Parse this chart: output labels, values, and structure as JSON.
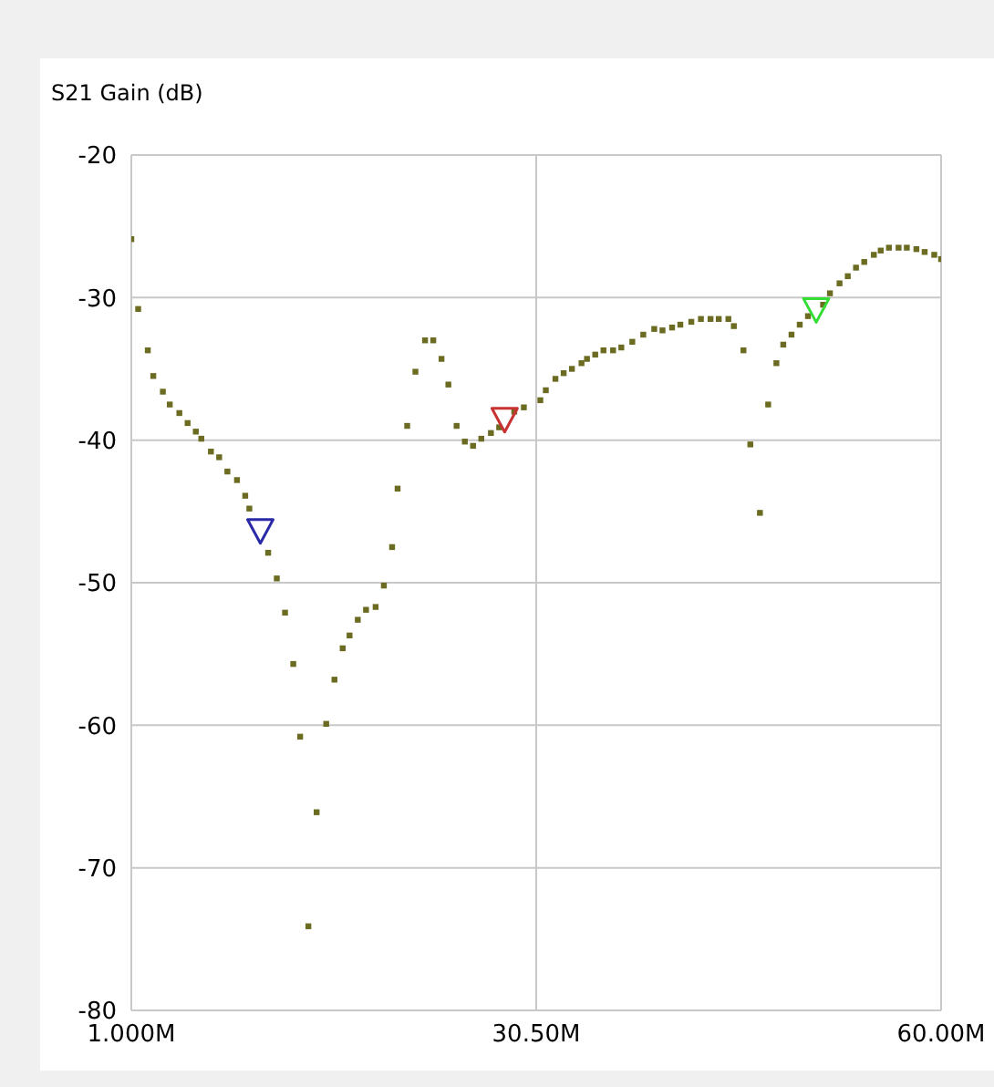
{
  "chart_data": {
    "type": "scatter",
    "ylabel": "S21 Gain (dB)",
    "xlim": [
      1,
      60
    ],
    "xticks": [
      {
        "value": 1,
        "label": "1.000M"
      },
      {
        "value": 30.5,
        "label": "30.50M"
      },
      {
        "value": 60,
        "label": "60.00M"
      }
    ],
    "ylim": [
      -80,
      -20
    ],
    "yticks": [
      -20,
      -30,
      -40,
      -50,
      -60,
      -70,
      -80
    ],
    "grid": true,
    "legend": false,
    "series": [
      {
        "color": "#6b6b22",
        "marker": "square",
        "x": [
          1.0,
          1.5,
          2.2,
          2.6,
          3.3,
          3.8,
          4.5,
          5.1,
          5.7,
          6.1,
          6.8,
          7.4,
          8.0,
          8.7,
          9.3,
          9.6,
          10.97,
          11.6,
          12.2,
          12.8,
          13.3,
          13.9,
          14.5,
          15.2,
          15.8,
          16.4,
          16.9,
          17.5,
          18.1,
          18.8,
          19.4,
          20.0,
          20.4,
          21.1,
          21.7,
          22.4,
          23.0,
          23.6,
          24.1,
          24.7,
          25.3,
          25.9,
          26.5,
          27.2,
          27.8,
          28.9,
          29.6,
          30.8,
          31.2,
          31.9,
          32.5,
          33.1,
          33.8,
          34.2,
          34.8,
          35.4,
          36.1,
          36.7,
          37.5,
          38.3,
          39.1,
          39.7,
          40.4,
          41.0,
          41.8,
          42.5,
          43.2,
          43.8,
          44.5,
          44.9,
          45.6,
          46.1,
          46.8,
          47.4,
          48.0,
          48.5,
          49.1,
          49.7,
          50.3,
          51.4,
          51.9,
          52.6,
          53.2,
          53.8,
          54.4,
          55.1,
          55.6,
          56.2,
          56.9,
          57.5,
          58.2,
          58.8,
          59.5,
          60.0
        ],
        "values": [
          -25.9,
          -30.8,
          -33.7,
          -35.5,
          -36.6,
          -37.5,
          -38.1,
          -38.8,
          -39.4,
          -39.9,
          -40.8,
          -41.2,
          -42.2,
          -42.8,
          -43.9,
          -44.8,
          -47.9,
          -49.7,
          -52.1,
          -55.7,
          -60.8,
          -74.1,
          -66.1,
          -59.9,
          -56.8,
          -54.6,
          -53.7,
          -52.6,
          -51.9,
          -51.7,
          -50.2,
          -47.5,
          -43.4,
          -39.0,
          -35.2,
          -33.0,
          -33.0,
          -34.3,
          -36.1,
          -39.0,
          -40.1,
          -40.4,
          -39.9,
          -39.5,
          -39.1,
          -38.0,
          -37.7,
          -37.2,
          -36.5,
          -35.7,
          -35.3,
          -35.0,
          -34.6,
          -34.3,
          -34.0,
          -33.7,
          -33.7,
          -33.5,
          -33.1,
          -32.6,
          -32.2,
          -32.3,
          -32.1,
          -31.9,
          -31.7,
          -31.5,
          -31.5,
          -31.5,
          -31.5,
          -32.0,
          -33.7,
          -40.3,
          -45.1,
          -37.5,
          -34.6,
          -33.3,
          -32.6,
          -31.9,
          -31.3,
          -30.5,
          -29.7,
          -29.0,
          -28.5,
          -27.9,
          -27.5,
          -27.0,
          -26.7,
          -26.5,
          -26.5,
          -26.5,
          -26.6,
          -26.8,
          -27.0,
          -27.3
        ]
      },
      {
        "color": "#2a2aa8",
        "marker": "triangle",
        "x": [
          10.4
        ],
        "values": [
          -46.4
        ]
      },
      {
        "color": "#c83232",
        "marker": "triangle",
        "x": [
          28.2
        ],
        "values": [
          -38.6
        ]
      },
      {
        "color": "#33dd33",
        "marker": "triangle",
        "x": [
          50.9
        ],
        "values": [
          -30.9
        ]
      }
    ]
  }
}
